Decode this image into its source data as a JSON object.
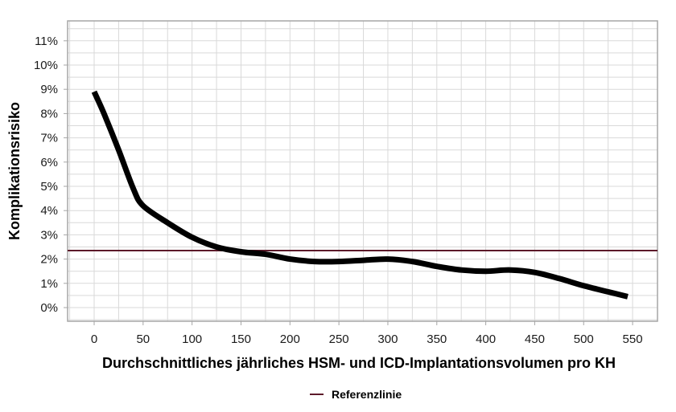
{
  "chart_data": {
    "type": "line",
    "title": "",
    "xlabel": "Durchschnittliches jährliches HSM- und ICD-Implantationsvolumen pro KH",
    "ylabel": "Komplikationsrisiko",
    "xlim": [
      -25,
      570
    ],
    "ylim": [
      -0.6,
      11.6
    ],
    "x_ticks": [
      0,
      50,
      100,
      150,
      200,
      250,
      300,
      350,
      400,
      450,
      500,
      550
    ],
    "x_tick_labels": [
      "0",
      "50",
      "100",
      "150",
      "200",
      "250",
      "300",
      "350",
      "400",
      "450",
      "500",
      "550"
    ],
    "y_ticks": [
      0,
      1,
      2,
      3,
      4,
      5,
      6,
      7,
      8,
      9,
      10,
      11
    ],
    "y_tick_labels": [
      "0%",
      "1%",
      "2%",
      "3%",
      "4%",
      "5%",
      "6%",
      "7%",
      "8%",
      "9%",
      "10%",
      "11%"
    ],
    "grid": true,
    "grid_minor_x_step": 25,
    "grid_minor_y_step": 0.5,
    "legend_position": "bottom",
    "series": [
      {
        "name": "Komplikationsrisiko",
        "color": "#000000",
        "show_in_legend": false,
        "x": [
          0,
          10,
          25,
          40,
          50,
          75,
          100,
          125,
          150,
          175,
          200,
          225,
          250,
          275,
          300,
          325,
          350,
          375,
          400,
          425,
          450,
          475,
          500,
          525,
          545
        ],
        "values": [
          8.9,
          8.0,
          6.5,
          4.9,
          4.2,
          3.5,
          2.9,
          2.5,
          2.3,
          2.2,
          2.0,
          1.9,
          1.9,
          1.95,
          2.0,
          1.9,
          1.7,
          1.55,
          1.5,
          1.55,
          1.45,
          1.2,
          0.9,
          0.65,
          0.45
        ]
      },
      {
        "name": "Referenzlinie",
        "color": "#5c1a2a",
        "show_in_legend": true,
        "type": "hline",
        "value": 2.35
      }
    ]
  },
  "legend": {
    "items": [
      {
        "label": "Referenzlinie",
        "color": "#5c1a2a"
      }
    ]
  },
  "colors": {
    "grid": "#d9d9d9",
    "axis": "#a6a6a6",
    "curve": "#000000",
    "reference": "#5c1a2a"
  }
}
